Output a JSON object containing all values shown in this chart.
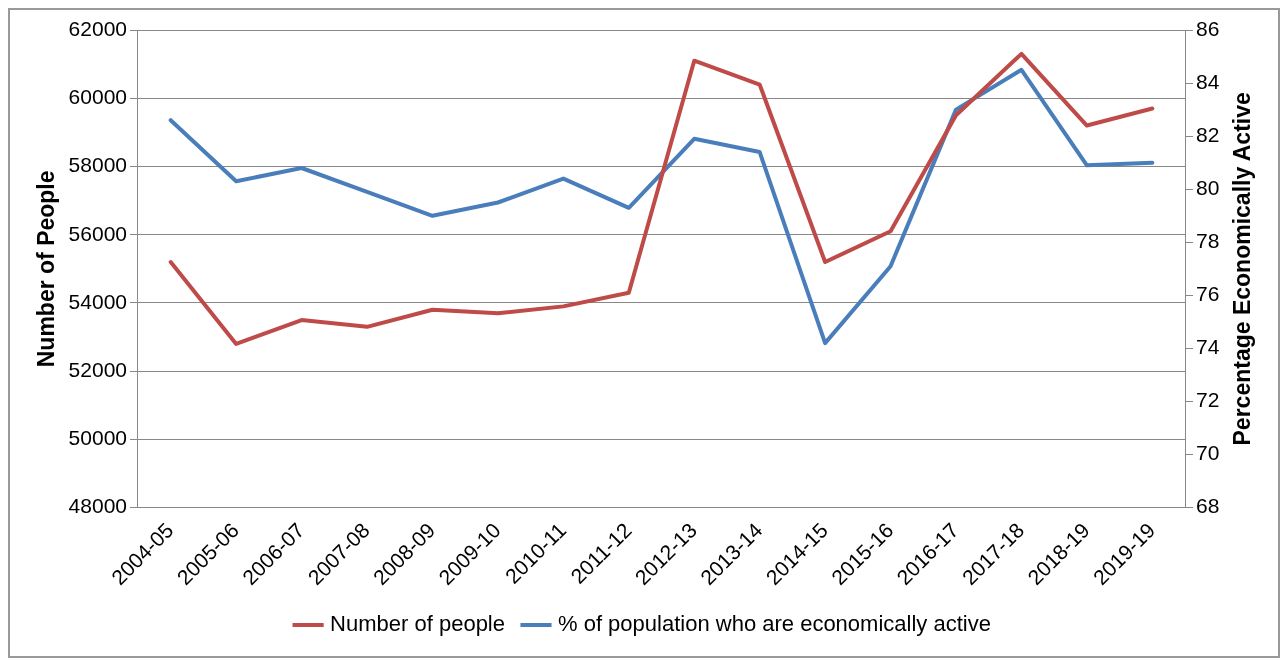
{
  "chart_data": {
    "type": "line",
    "categories": [
      "2004-05",
      "2005-06",
      "2006-07",
      "2007-08",
      "2008-09",
      "2009-10",
      "2010-11",
      "2011-12",
      "2012-13",
      "2013-14",
      "2014-15",
      "2015-16",
      "2016-17",
      "2017-18",
      "2018-19",
      "2019-19"
    ],
    "ylabel": "Number of People",
    "y2label": "Percentage Economically Active",
    "ylim": [
      48000,
      62000
    ],
    "yticks": [
      48000,
      50000,
      52000,
      54000,
      56000,
      58000,
      60000,
      62000
    ],
    "y2lim": [
      68,
      86
    ],
    "y2ticks": [
      68,
      70,
      72,
      74,
      76,
      78,
      80,
      82,
      84,
      86
    ],
    "grid": "y",
    "legend": "bottom",
    "marker": "none",
    "line_style": "solid",
    "series": [
      {
        "name": "Number of people",
        "color": "#be4b48",
        "values": [
          55200,
          52800,
          53500,
          53300,
          53800,
          53700,
          53900,
          54300,
          61100,
          60400,
          55200,
          56100,
          59500,
          61300,
          59200,
          59700
        ]
      },
      {
        "name": "% of population who are economically active",
        "color": "#4a7ebb",
        "axis": "y2",
        "values": [
          82.6,
          80.3,
          80.8,
          79.9,
          79.0,
          79.5,
          80.4,
          79.3,
          81.9,
          81.4,
          74.2,
          77.1,
          83.0,
          84.5,
          80.9,
          81.0
        ]
      }
    ]
  }
}
